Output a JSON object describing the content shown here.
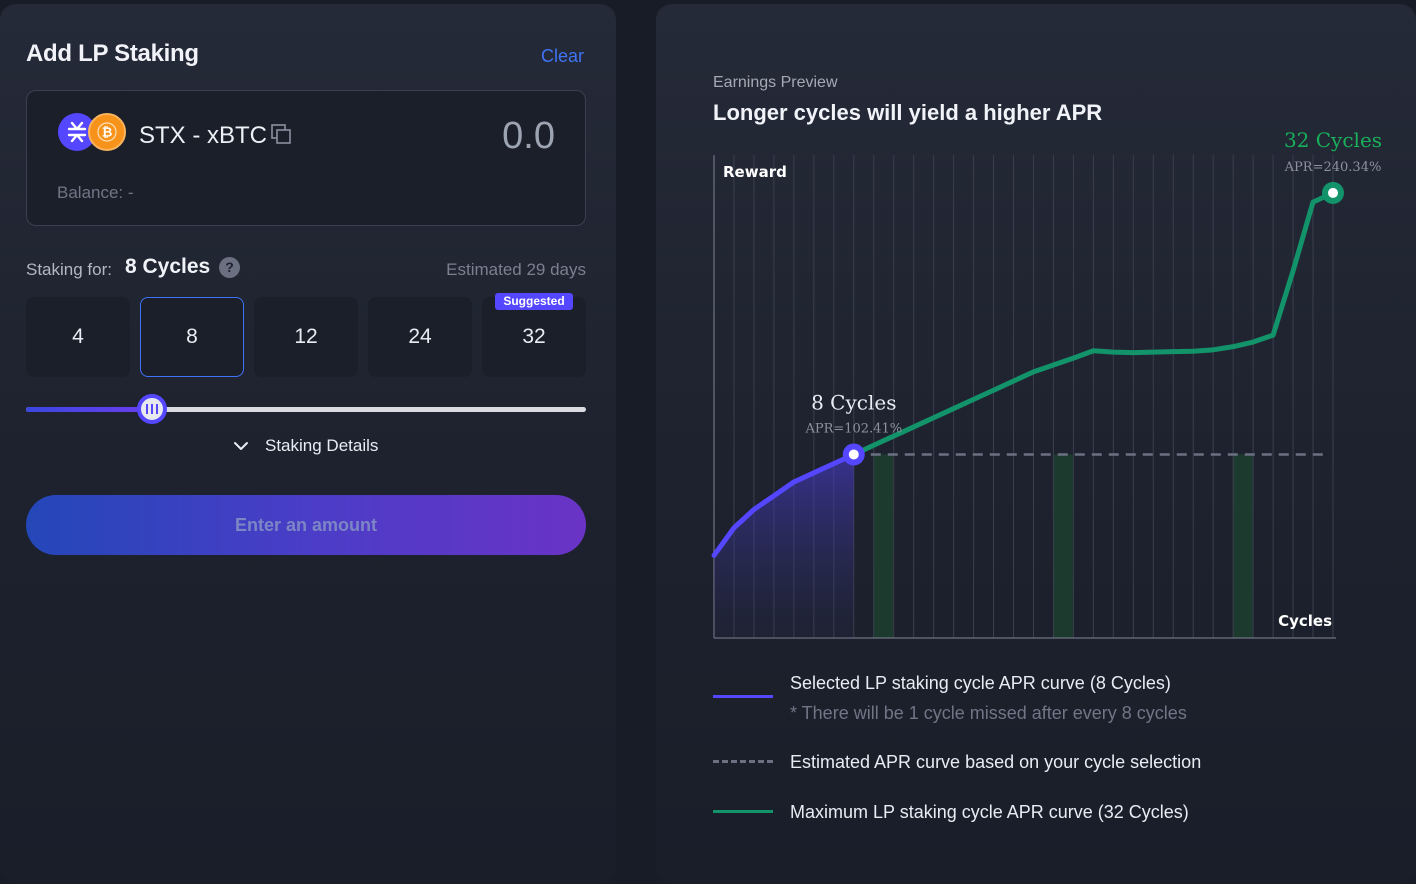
{
  "left": {
    "title": "Add LP Staking",
    "clear_label": "Clear",
    "token": {
      "pair": "STX - xBTC",
      "amount": "0.0",
      "balance": "Balance: -",
      "icons": [
        "stx-icon",
        "btc-icon",
        "copy-icon"
      ]
    },
    "staking_label": "Staking for:",
    "staking_value": "8 Cycles",
    "help_label": "?",
    "estimated": "Estimated 29 days",
    "cycle_options": [
      "4",
      "8",
      "12",
      "24",
      "32"
    ],
    "selected_cycle": "8",
    "suggested_badge": "Suggested",
    "slider_progress_fraction": 0.225,
    "details_label": "Staking Details",
    "cta_label": "Enter an amount"
  },
  "right": {
    "label": "Earnings Preview",
    "title": "Longer cycles will yield a higher APR",
    "legend": [
      {
        "text": "Selected LP staking cycle APR curve (8 Cycles)",
        "note": "* There will be 1 cycle missed after every 8 cycles",
        "style": "solid",
        "color": "#5546ff"
      },
      {
        "text": "Estimated APR curve based on your cycle selection",
        "note": "",
        "style": "dashed",
        "color": "#6b7182"
      },
      {
        "text": "Maximum LP staking cycle APR curve (32 Cycles)",
        "note": "",
        "style": "solid",
        "color": "#12936a"
      }
    ]
  },
  "chart_data": {
    "type": "line",
    "ylabel": "Reward",
    "xlabel": "Cycles",
    "x_ticks": 32,
    "series": [
      {
        "name": "Selected LP staking cycle APR curve (8 Cycles)",
        "color": "#5546ff",
        "x": [
          1,
          2,
          3,
          4,
          5,
          6,
          7,
          8
        ],
        "y": [
          18,
          24,
          28,
          31,
          34,
          36,
          38,
          40
        ]
      },
      {
        "name": "Maximum LP staking cycle APR curve (32 Cycles)",
        "color": "#12936a",
        "x": [
          8,
          9,
          10,
          11,
          12,
          13,
          14,
          15,
          16,
          17,
          18,
          19,
          20,
          21,
          22,
          23,
          24,
          25,
          26,
          27,
          28,
          29,
          30,
          31,
          32
        ],
        "y": [
          40,
          42,
          44,
          46,
          48,
          50,
          52,
          54,
          56,
          58,
          59.5,
          61,
          62.6,
          62.3,
          62.2,
          62.3,
          62.4,
          62.5,
          62.8,
          63.5,
          64.5,
          66,
          80,
          95,
          97
        ]
      },
      {
        "name": "Estimated APR curve based on your cycle selection",
        "color": "#6b7182",
        "x": [
          8,
          32
        ],
        "y": [
          40,
          40
        ]
      }
    ],
    "missed_cycles": [
      9,
      18,
      27
    ],
    "annotations": [
      {
        "x": 8,
        "y": 40,
        "label": "8 Cycles",
        "sub": "APR=102.41%",
        "color": "#e9ecf3"
      },
      {
        "x": 32,
        "y": 97,
        "label": "32 Cycles",
        "sub": "APR=240.34%",
        "color": "#18b05a"
      }
    ],
    "ylim": [
      0,
      100
    ],
    "xlim": [
      1,
      32
    ]
  }
}
